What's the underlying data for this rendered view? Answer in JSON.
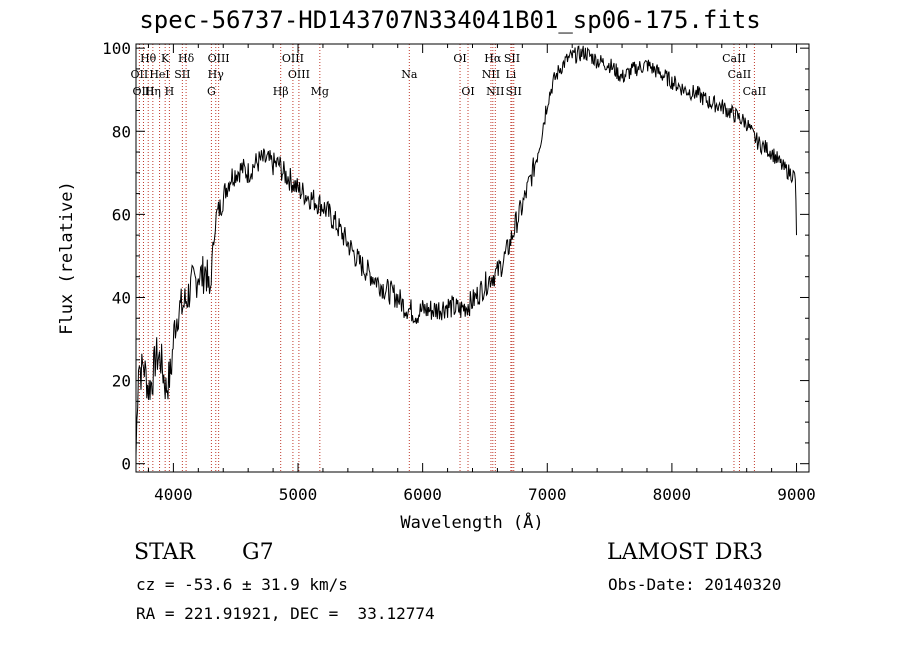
{
  "chart_data": {
    "type": "line",
    "title": "spec-56737-HD143707N334041B01_sp06-175.fits",
    "xlabel": "Wavelength (Å)",
    "ylabel": "Flux (relative)",
    "xlim": [
      3700,
      9100
    ],
    "ylim": [
      -2,
      101
    ],
    "x_ticks": [
      4000,
      5000,
      6000,
      7000,
      8000,
      9000
    ],
    "y_ticks": [
      0,
      20,
      40,
      60,
      80,
      100
    ],
    "series": [
      {
        "name": "spectrum",
        "x": [
          3700,
          3720,
          3740,
          3760,
          3780,
          3800,
          3830,
          3860,
          3900,
          3940,
          3980,
          4010,
          4040,
          4080,
          4110,
          4150,
          4180,
          4200,
          4230,
          4260,
          4290,
          4310,
          4330,
          4350,
          4380,
          4420,
          4460,
          4500,
          4550,
          4600,
          4650,
          4700,
          4750,
          4800,
          4850,
          4880,
          4920,
          4950,
          5000,
          5050,
          5100,
          5150,
          5200,
          5300,
          5400,
          5500,
          5600,
          5700,
          5800,
          5850,
          5900,
          5950,
          6000,
          6100,
          6200,
          6300,
          6400,
          6450,
          6500,
          6550,
          6600,
          6650,
          6700,
          6750,
          6800,
          6850,
          6900,
          6950,
          7000,
          7050,
          7100,
          7150,
          7200,
          7300,
          7400,
          7500,
          7600,
          7700,
          7800,
          7900,
          8000,
          8100,
          8200,
          8300,
          8400,
          8500,
          8550,
          8600,
          8650,
          8700,
          8750,
          8800,
          8850,
          8900,
          8950,
          8990,
          9000
        ],
        "y": [
          2,
          25,
          22,
          24,
          21,
          18,
          20,
          26,
          25,
          18,
          22,
          33,
          37,
          38,
          40,
          43,
          44,
          46,
          45,
          47,
          40,
          48,
          57,
          60,
          62,
          66,
          69,
          70,
          71,
          70,
          72,
          73,
          73,
          72,
          72,
          70,
          69,
          68,
          66,
          65,
          64,
          63,
          62,
          58,
          53,
          48,
          45,
          42,
          40,
          38,
          37,
          36,
          37,
          37,
          38,
          37,
          39,
          41,
          43,
          45,
          46,
          49,
          53,
          58,
          62,
          67,
          72,
          79,
          87,
          92,
          95,
          97,
          98,
          99,
          97,
          96,
          93,
          95,
          96,
          94,
          92,
          90,
          89,
          87,
          86,
          84,
          83,
          82,
          79,
          77,
          76,
          75,
          73,
          71,
          70,
          69,
          55
        ]
      }
    ],
    "line_labels": [
      {
        "name": "Hθ",
        "wavelength": 3798,
        "row": 1
      },
      {
        "name": "K",
        "wavelength": 3934,
        "row": 1
      },
      {
        "name": "Hδ",
        "wavelength": 4102,
        "row": 1
      },
      {
        "name": "OIII",
        "wavelength": 4363,
        "row": 1
      },
      {
        "name": "OIII",
        "wavelength": 4959,
        "row": 1
      },
      {
        "name": "OI",
        "wavelength": 6300,
        "row": 1
      },
      {
        "name": "Hα",
        "wavelength": 6563,
        "row": 1
      },
      {
        "name": "SII",
        "wavelength": 6717,
        "row": 1
      },
      {
        "name": "CaII",
        "wavelength": 8498,
        "row": 1
      },
      {
        "name": "OII",
        "wavelength": 3727,
        "row": 2
      },
      {
        "name": "HeI",
        "wavelength": 3889,
        "row": 2
      },
      {
        "name": "SII",
        "wavelength": 4072,
        "row": 2
      },
      {
        "name": "Hγ",
        "wavelength": 4340,
        "row": 2
      },
      {
        "name": "OIII",
        "wavelength": 5007,
        "row": 2
      },
      {
        "name": "Na",
        "wavelength": 5893,
        "row": 2
      },
      {
        "name": "NII",
        "wavelength": 6548,
        "row": 2
      },
      {
        "name": "Li",
        "wavelength": 6708,
        "row": 2
      },
      {
        "name": "CaII",
        "wavelength": 8542,
        "row": 2
      },
      {
        "name": "OIII",
        "wavelength": 3760,
        "row": 3
      },
      {
        "name": "Hη",
        "wavelength": 3835,
        "row": 3
      },
      {
        "name": "H",
        "wavelength": 3968,
        "row": 3
      },
      {
        "name": "G",
        "wavelength": 4305,
        "row": 3
      },
      {
        "name": "Hβ",
        "wavelength": 4861,
        "row": 3
      },
      {
        "name": "Mg",
        "wavelength": 5175,
        "row": 3
      },
      {
        "name": "OI",
        "wavelength": 6364,
        "row": 3
      },
      {
        "name": "NII",
        "wavelength": 6583,
        "row": 3
      },
      {
        "name": "SII",
        "wavelength": 6731,
        "row": 3
      },
      {
        "name": "CaII",
        "wavelength": 8662,
        "row": 3
      }
    ]
  },
  "info": {
    "object_class": "STAR",
    "subclass": "G7",
    "survey": "LAMOST DR3",
    "redshift": "cz = -53.6 ± 31.9 km/s",
    "obs_date": "Obs-Date: 20140320",
    "coords": "RA = 221.91921, DEC =  33.12774"
  }
}
